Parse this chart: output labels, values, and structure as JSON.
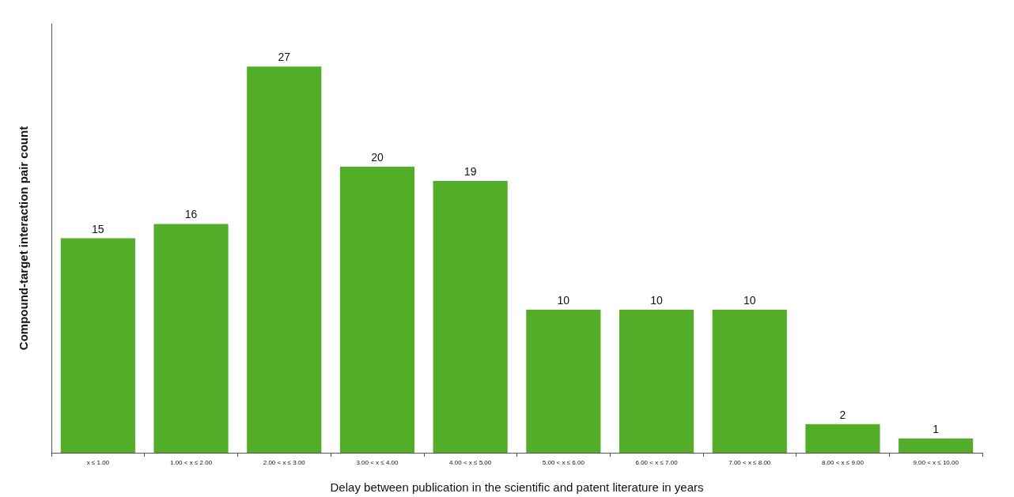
{
  "chart_data": {
    "type": "bar",
    "xlabel": "Delay between publication in the scientific and patent literature in years",
    "ylabel": "Compound-target interaction pair count",
    "categories": [
      "x ≤ 1.00",
      "1.00 < x ≤ 2.00",
      "2.00 < x ≤ 3.00",
      "3.00 < x ≤ 4.00",
      "4.00 < x ≤ 5.00",
      "5.00 < x ≤ 6.00",
      "6.00 < x ≤ 7.00",
      "7.00 < x ≤ 8.00",
      "8.00 < x ≤ 9.00",
      "9.00 < x ≤ 10.00"
    ],
    "values": [
      15,
      16,
      27,
      20,
      19,
      10,
      10,
      10,
      2,
      1
    ],
    "color": "#52ad27",
    "data_labels": true
  }
}
